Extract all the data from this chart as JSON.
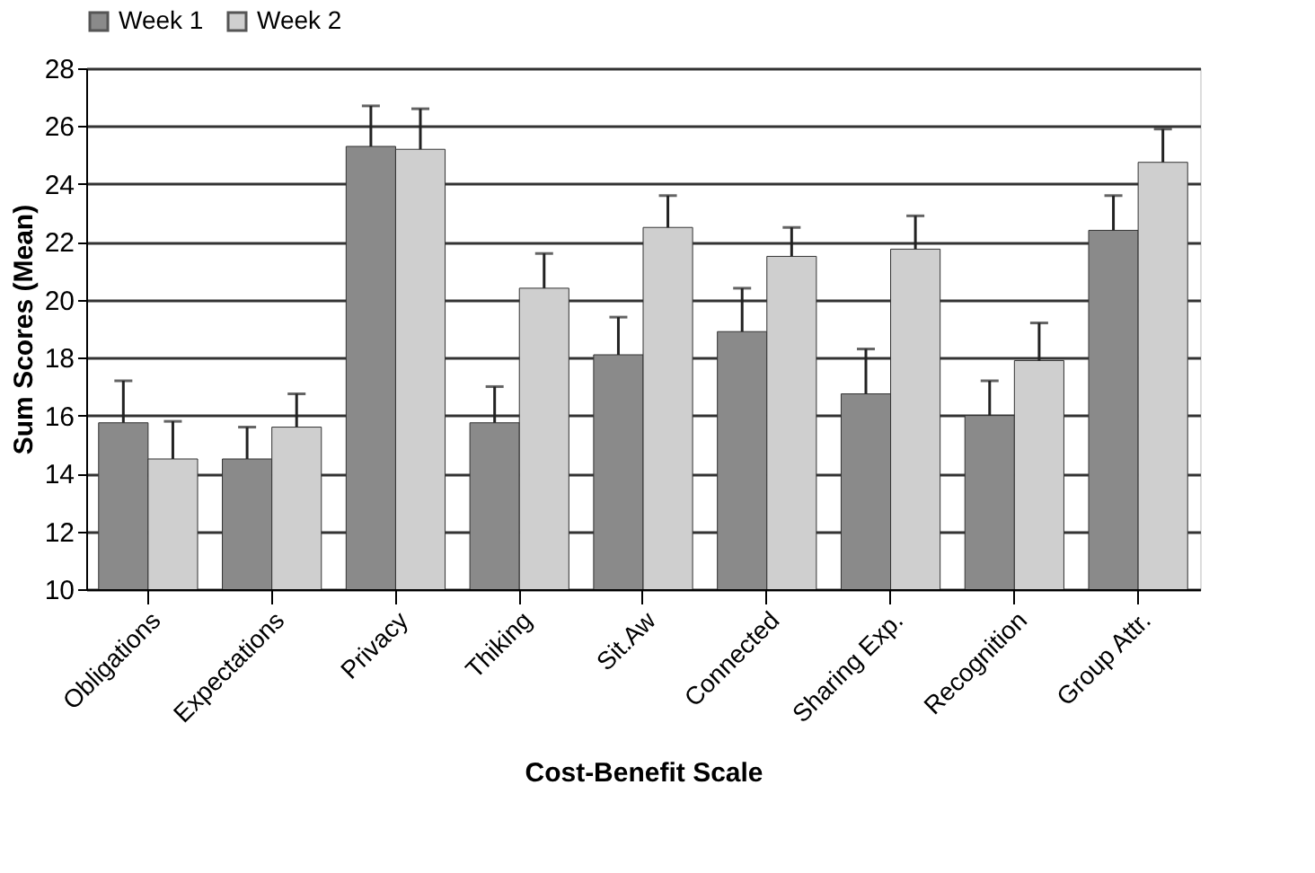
{
  "chart_data": {
    "type": "bar",
    "xlabel": "Cost-Benefit Scale",
    "ylabel": "Sum Scores (Mean)",
    "categories": [
      "Obligations",
      "Expectations",
      "Privacy",
      "Thiking",
      "Sit.Aw",
      "Connected",
      "Sharing Exp.",
      "Recognition",
      "Group Attr."
    ],
    "series": [
      {
        "name": "Week 1",
        "color": "#8a8a8a",
        "values": [
          15.75,
          14.5,
          25.3,
          15.75,
          18.1,
          18.9,
          16.75,
          16.0,
          22.4
        ],
        "errors": [
          1.45,
          1.1,
          1.4,
          1.25,
          1.3,
          1.5,
          1.55,
          1.2,
          1.2
        ]
      },
      {
        "name": "Week 2",
        "color": "#cfcfcf",
        "values": [
          14.5,
          15.6,
          25.2,
          20.4,
          22.5,
          21.5,
          21.75,
          17.9,
          24.75
        ],
        "errors": [
          1.3,
          1.15,
          1.4,
          1.2,
          1.1,
          1.0,
          1.15,
          1.3,
          1.15
        ]
      }
    ],
    "ylim": [
      10,
      28
    ],
    "yticks": [
      10,
      12,
      14,
      16,
      18,
      20,
      22,
      24,
      26,
      28
    ],
    "grid": "y",
    "legend": "top"
  }
}
